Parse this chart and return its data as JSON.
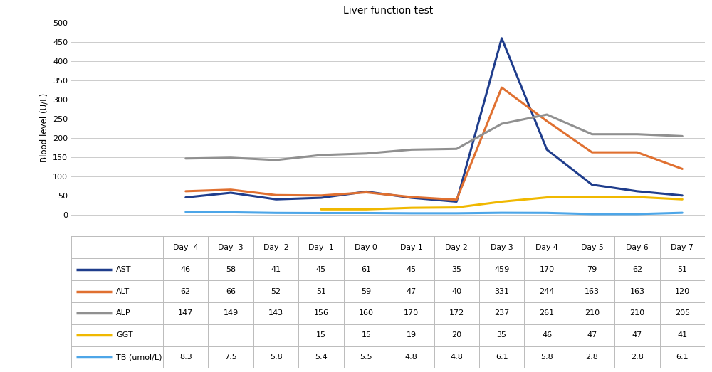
{
  "title": "Liver function test",
  "days": [
    "Day -4",
    "Day -3",
    "Day -2",
    "Day -1",
    "Day 0",
    "Day 1",
    "Day 2",
    "Day 3",
    "Day 4",
    "Day 5",
    "Day 6",
    "Day 7"
  ],
  "x_values": [
    0,
    1,
    2,
    3,
    4,
    5,
    6,
    7,
    8,
    9,
    10,
    11
  ],
  "series": [
    {
      "label": "AST",
      "color": "#1f3d8c",
      "linewidth": 2.2,
      "values": [
        46,
        58,
        41,
        45,
        61,
        45,
        35,
        459,
        170,
        79,
        62,
        51
      ]
    },
    {
      "label": "ALT",
      "color": "#e07030",
      "linewidth": 2.2,
      "values": [
        62,
        66,
        52,
        51,
        59,
        47,
        40,
        331,
        244,
        163,
        163,
        120
      ]
    },
    {
      "label": "ALP",
      "color": "#909090",
      "linewidth": 2.2,
      "values": [
        147,
        149,
        143,
        156,
        160,
        170,
        172,
        237,
        261,
        210,
        210,
        205
      ]
    },
    {
      "label": "GGT",
      "color": "#f0b800",
      "linewidth": 2.2,
      "values": [
        null,
        null,
        null,
        15,
        15,
        19,
        20,
        35,
        46,
        47,
        47,
        41
      ]
    },
    {
      "label": "TB (umol/L)",
      "color": "#4da6e8",
      "linewidth": 2.2,
      "values": [
        8.3,
        7.5,
        5.8,
        5.4,
        5.5,
        4.8,
        4.8,
        6.1,
        5.8,
        2.8,
        2.8,
        6.1
      ]
    }
  ],
  "table_rows": [
    [
      "AST",
      "46",
      "58",
      "41",
      "45",
      "61",
      "45",
      "35",
      "459",
      "170",
      "79",
      "62",
      "51"
    ],
    [
      "ALT",
      "62",
      "66",
      "52",
      "51",
      "59",
      "47",
      "40",
      "331",
      "244",
      "163",
      "163",
      "120"
    ],
    [
      "ALP",
      "147",
      "149",
      "143",
      "156",
      "160",
      "170",
      "172",
      "237",
      "261",
      "210",
      "210",
      "205"
    ],
    [
      "GGT",
      "",
      "",
      "",
      "15",
      "15",
      "19",
      "20",
      "35",
      "46",
      "47",
      "47",
      "41"
    ],
    [
      "TB (umol/L)",
      "8.3",
      "7.5",
      "5.8",
      "5.4",
      "5.5",
      "4.8",
      "4.8",
      "6.1",
      "5.8",
      "2.8",
      "2.8",
      "6.1"
    ]
  ],
  "ylabel": "Blood level (U/L)",
  "ylim": [
    -55,
    510
  ],
  "yticks": [
    0,
    50,
    100,
    150,
    200,
    250,
    300,
    350,
    400,
    450,
    500
  ],
  "yticklabels": [
    "0",
    "50",
    "100",
    "150",
    "200",
    "250",
    "300",
    "350",
    "400",
    "450",
    "500"
  ],
  "background_color": "#ffffff",
  "grid_color": "#cccccc",
  "table_line_color": "#bbbbbb",
  "legend_colors": [
    "#1f3d8c",
    "#e07030",
    "#909090",
    "#f0b800",
    "#4da6e8"
  ]
}
